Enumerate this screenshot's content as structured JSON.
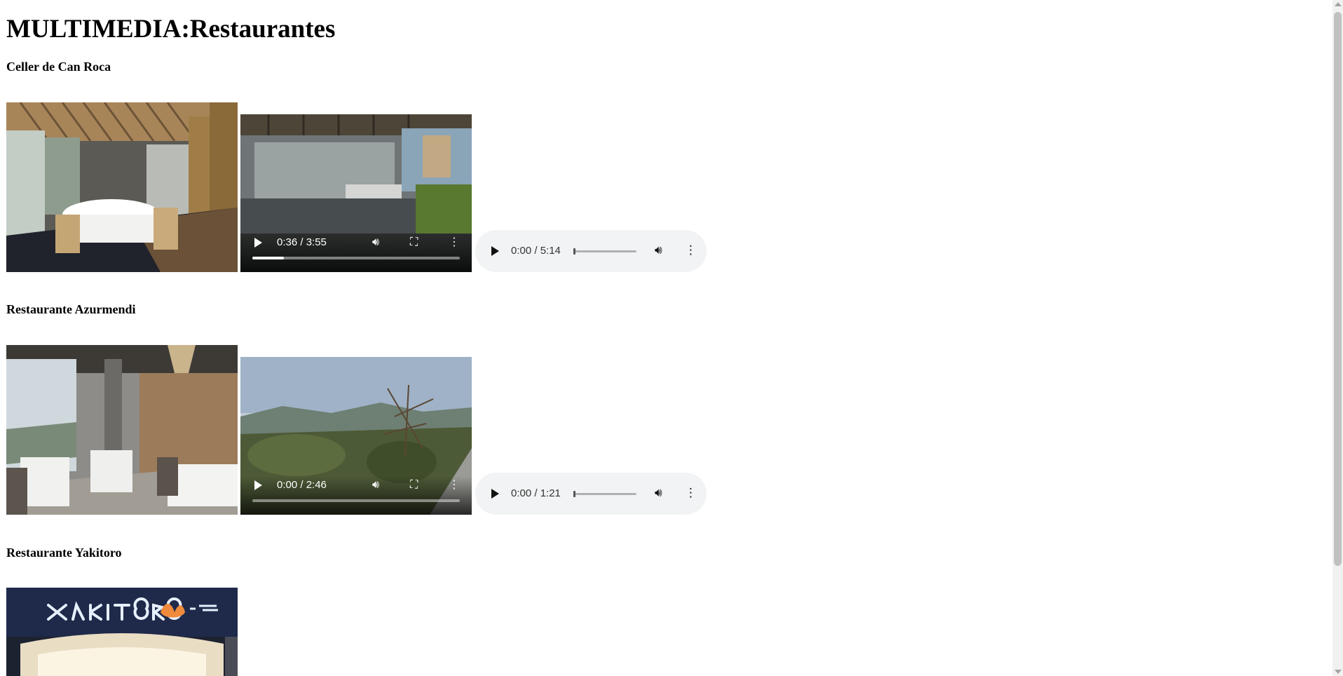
{
  "page_title": "MULTIMEDIA:Restaurantes",
  "restaurants": [
    {
      "name": "Celler de Can Roca",
      "video": {
        "time": "0:36 / 3:55",
        "progress": 0.153
      },
      "audio": {
        "time": "0:00 / 5:14",
        "progress": 0.0
      }
    },
    {
      "name": "Restaurante Azurmendi",
      "video": {
        "time": "0:00 / 2:46",
        "progress": 0.0
      },
      "audio": {
        "time": "0:00 / 1:21",
        "progress": 0.0
      }
    },
    {
      "name": "Restaurante Yakitoro"
    }
  ],
  "icons": {
    "play": "play-icon",
    "volume": "volume-icon",
    "fullscreen": "fullscreen-icon",
    "more": "more-options-icon"
  }
}
